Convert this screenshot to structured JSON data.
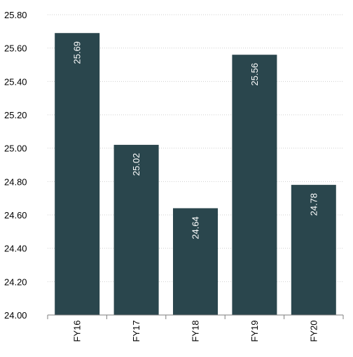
{
  "chart_data": {
    "type": "bar",
    "title": "",
    "xlabel": "",
    "ylabel": "",
    "categories": [
      "FY16",
      "FY17",
      "FY18",
      "FY19",
      "FY20"
    ],
    "values": [
      25.69,
      25.02,
      24.64,
      25.56,
      24.78
    ],
    "value_labels": [
      "25.69",
      "25.02",
      "24.64",
      "25.56",
      "24.78"
    ],
    "ylim": [
      24.0,
      25.8
    ],
    "yticks": [
      24.0,
      24.2,
      24.4,
      24.6,
      24.8,
      25.0,
      25.2,
      25.4,
      25.6,
      25.8
    ],
    "ytick_labels": [
      "24.00",
      "24.20",
      "24.40",
      "24.60",
      "24.80",
      "25.00",
      "25.20",
      "25.40",
      "25.60",
      "25.80"
    ],
    "grid": true,
    "legend": "none",
    "bar_color": "#2a464d",
    "label_color": "#ffffff"
  }
}
